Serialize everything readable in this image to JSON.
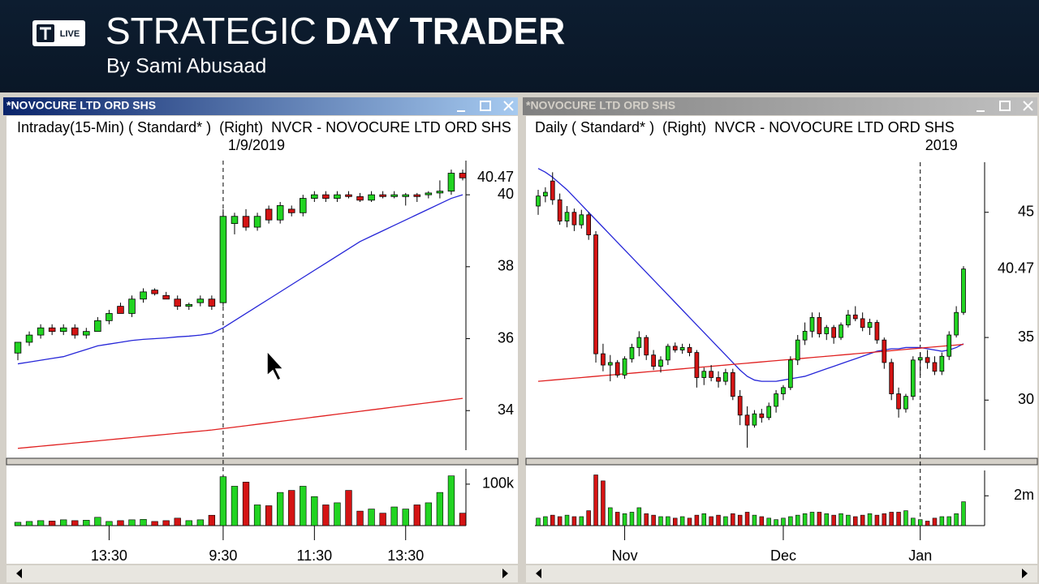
{
  "header": {
    "logo": "LIVE",
    "title_light": "STRATEGIC",
    "title_bold": "DAY TRADER",
    "byline": "By Sami Abusaad"
  },
  "windows": [
    {
      "title": "*NOVOCURE LTD ORD SHS",
      "info": "Intraday(15-Min) ( Standard* )  (Right)  NVCR - NOVOCURE LTD ORD SHS"
    },
    {
      "title": "*NOVOCURE LTD ORD SHS",
      "info": "Daily ( Standard* )  (Right)  NVCR - NOVOCURE LTD ORD SHS"
    }
  ],
  "chart_data": [
    {
      "type": "candlestick",
      "date_label": "1/9/2019",
      "date_marker_index": 18,
      "ylim": [
        32.9,
        40.95
      ],
      "yticks": [
        34,
        36,
        38,
        40
      ],
      "last_price": 40.47,
      "up_color": "#22d422",
      "down_color": "#d41414",
      "candles": [
        [
          35.6,
          35.9,
          35.4,
          35.9
        ],
        [
          35.9,
          36.2,
          35.8,
          36.1
        ],
        [
          36.1,
          36.4,
          36.0,
          36.3
        ],
        [
          36.3,
          36.4,
          36.1,
          36.2
        ],
        [
          36.2,
          36.4,
          36.1,
          36.3
        ],
        [
          36.3,
          36.4,
          36.0,
          36.1
        ],
        [
          36.1,
          36.3,
          36.0,
          36.2
        ],
        [
          36.2,
          36.6,
          36.2,
          36.5
        ],
        [
          36.5,
          36.8,
          36.4,
          36.7
        ],
        [
          36.9,
          37.0,
          36.7,
          36.7
        ],
        [
          36.7,
          37.2,
          36.6,
          37.1
        ],
        [
          37.1,
          37.4,
          37.0,
          37.3
        ],
        [
          37.35,
          37.4,
          37.2,
          37.25
        ],
        [
          37.2,
          37.3,
          37.1,
          37.1
        ],
        [
          37.1,
          37.2,
          36.8,
          36.9
        ],
        [
          36.9,
          37.0,
          36.8,
          36.95
        ],
        [
          37.0,
          37.2,
          36.9,
          37.1
        ],
        [
          37.1,
          37.2,
          36.8,
          36.9
        ],
        [
          37.0,
          39.6,
          36.9,
          39.4
        ],
        [
          39.2,
          39.5,
          38.9,
          39.4
        ],
        [
          39.4,
          39.6,
          39.0,
          39.1
        ],
        [
          39.1,
          39.5,
          39.0,
          39.4
        ],
        [
          39.6,
          39.7,
          39.2,
          39.3
        ],
        [
          39.3,
          39.8,
          39.2,
          39.7
        ],
        [
          39.6,
          39.7,
          39.4,
          39.5
        ],
        [
          39.5,
          40.0,
          39.4,
          39.9
        ],
        [
          39.9,
          40.1,
          39.8,
          40.0
        ],
        [
          40.0,
          40.1,
          39.8,
          39.9
        ],
        [
          39.9,
          40.1,
          39.8,
          40.0
        ],
        [
          40.0,
          40.1,
          39.9,
          39.95
        ],
        [
          39.95,
          40.05,
          39.8,
          39.85
        ],
        [
          39.85,
          40.1,
          39.8,
          40.0
        ],
        [
          40.0,
          40.1,
          39.9,
          39.95
        ],
        [
          39.95,
          40.1,
          39.9,
          40.0
        ],
        [
          39.95,
          40.05,
          39.7,
          40.0
        ],
        [
          40.0,
          40.05,
          39.8,
          39.95
        ],
        [
          40.0,
          40.1,
          39.9,
          40.05
        ],
        [
          40.05,
          40.4,
          39.9,
          40.1
        ],
        [
          40.1,
          40.7,
          40.0,
          40.6
        ],
        [
          40.6,
          40.7,
          40.4,
          40.47
        ]
      ],
      "series": [
        {
          "color": "#2626d8",
          "values": [
            35.3,
            35.35,
            35.4,
            35.45,
            35.5,
            35.6,
            35.7,
            35.8,
            35.85,
            35.9,
            35.95,
            35.98,
            36.0,
            36.02,
            36.05,
            36.07,
            36.1,
            36.15,
            36.3,
            36.5,
            36.7,
            36.9,
            37.1,
            37.3,
            37.5,
            37.7,
            37.9,
            38.1,
            38.3,
            38.5,
            38.7,
            38.85,
            39.0,
            39.15,
            39.3,
            39.45,
            39.6,
            39.75,
            39.9,
            40.0
          ]
        },
        {
          "color": "#e02020",
          "values": [
            32.95,
            32.98,
            33.01,
            33.04,
            33.07,
            33.1,
            33.13,
            33.16,
            33.19,
            33.22,
            33.25,
            33.28,
            33.31,
            33.34,
            33.37,
            33.4,
            33.43,
            33.46,
            33.5,
            33.54,
            33.58,
            33.62,
            33.66,
            33.7,
            33.74,
            33.78,
            33.82,
            33.86,
            33.9,
            33.94,
            33.98,
            34.02,
            34.06,
            34.1,
            34.14,
            34.18,
            34.22,
            34.26,
            34.3,
            34.34
          ]
        }
      ],
      "volume": {
        "ylim": [
          0,
          137000
        ],
        "yticks": [
          {
            "value": 100000,
            "label": "100k"
          }
        ],
        "values": [
          8000,
          10000,
          12000,
          11000,
          14000,
          12000,
          13000,
          20000,
          10000,
          12000,
          14000,
          15000,
          10000,
          12000,
          18000,
          12000,
          14000,
          25000,
          118000,
          95000,
          105000,
          50000,
          48000,
          80000,
          85000,
          95000,
          70000,
          50000,
          55000,
          85000,
          35000,
          40000,
          30000,
          45000,
          40000,
          50000,
          55000,
          80000,
          120000,
          30000
        ]
      },
      "x_labels": [
        {
          "index": 8,
          "label": "13:30"
        },
        {
          "index": 18,
          "label": "9:30"
        },
        {
          "index": 26,
          "label": "11:30"
        },
        {
          "index": 34,
          "label": "13:30"
        }
      ]
    },
    {
      "type": "candlestick",
      "date_label": "2019",
      "date_marker_index": 53,
      "ylim": [
        26,
        49
      ],
      "yticks": [
        30,
        35,
        45
      ],
      "last_price": 40.47,
      "up_color": "#22d422",
      "down_color": "#d41414",
      "candles": [
        [
          45.5,
          46.8,
          44.8,
          46.3
        ],
        [
          46.3,
          47.0,
          45.8,
          46.6
        ],
        [
          47.5,
          48.2,
          45.6,
          46.0
        ],
        [
          46.0,
          46.5,
          44.0,
          44.3
        ],
        [
          44.3,
          45.5,
          43.8,
          45.0
        ],
        [
          45.0,
          45.3,
          43.5,
          44.0
        ],
        [
          44.0,
          45.2,
          43.7,
          44.8
        ],
        [
          44.8,
          45.0,
          42.8,
          43.2
        ],
        [
          43.2,
          43.5,
          33.0,
          33.7
        ],
        [
          33.7,
          34.5,
          32.3,
          32.8
        ],
        [
          32.8,
          33.6,
          31.5,
          33.0
        ],
        [
          33.0,
          33.2,
          31.8,
          32.0
        ],
        [
          32.0,
          33.5,
          31.7,
          33.3
        ],
        [
          33.3,
          34.5,
          33.0,
          34.2
        ],
        [
          34.2,
          35.5,
          33.5,
          35.0
        ],
        [
          35.0,
          35.2,
          33.2,
          33.6
        ],
        [
          33.6,
          34.0,
          32.4,
          32.7
        ],
        [
          32.7,
          33.5,
          32.2,
          33.2
        ],
        [
          33.2,
          34.5,
          32.8,
          34.3
        ],
        [
          34.3,
          34.6,
          33.8,
          34.0
        ],
        [
          34.0,
          34.5,
          33.7,
          34.2
        ],
        [
          34.2,
          34.5,
          33.5,
          33.8
        ],
        [
          33.8,
          34.0,
          31.0,
          31.8
        ],
        [
          31.8,
          32.6,
          31.2,
          32.3
        ],
        [
          32.3,
          32.8,
          31.5,
          31.8
        ],
        [
          31.8,
          32.3,
          31.0,
          31.5
        ],
        [
          31.5,
          32.5,
          31.2,
          32.2
        ],
        [
          32.2,
          32.5,
          30.0,
          30.3
        ],
        [
          30.3,
          30.8,
          28.0,
          28.8
        ],
        [
          28.8,
          29.5,
          26.2,
          28.0
        ],
        [
          28.0,
          29.2,
          27.8,
          28.9
        ],
        [
          28.9,
          29.3,
          28.2,
          28.6
        ],
        [
          28.6,
          29.8,
          28.4,
          29.5
        ],
        [
          29.5,
          30.8,
          29.0,
          30.5
        ],
        [
          30.5,
          31.2,
          30.0,
          31.0
        ],
        [
          31.0,
          33.5,
          30.8,
          33.2
        ],
        [
          33.2,
          35.2,
          32.8,
          34.8
        ],
        [
          34.8,
          36.2,
          34.4,
          35.5
        ],
        [
          35.5,
          37.0,
          35.0,
          36.6
        ],
        [
          36.6,
          37.0,
          35.0,
          35.3
        ],
        [
          35.3,
          36.0,
          34.8,
          35.8
        ],
        [
          35.8,
          36.0,
          34.5,
          35.0
        ],
        [
          35.0,
          36.2,
          34.8,
          36.0
        ],
        [
          36.0,
          37.2,
          35.8,
          36.8
        ],
        [
          36.8,
          37.5,
          36.3,
          36.5
        ],
        [
          36.5,
          37.0,
          35.5,
          35.8
        ],
        [
          35.8,
          36.5,
          35.2,
          36.2
        ],
        [
          36.2,
          36.4,
          34.5,
          34.8
        ],
        [
          34.8,
          35.0,
          32.5,
          33.0
        ],
        [
          33.0,
          33.3,
          30.0,
          30.5
        ],
        [
          30.5,
          31.0,
          28.6,
          29.3
        ],
        [
          29.3,
          30.5,
          29.0,
          30.3
        ],
        [
          30.3,
          33.5,
          30.0,
          33.2
        ],
        [
          33.2,
          33.8,
          32.0,
          33.4
        ],
        [
          33.4,
          34.0,
          32.5,
          33.0
        ],
        [
          33.0,
          33.5,
          32.0,
          32.3
        ],
        [
          32.3,
          33.8,
          32.0,
          33.5
        ],
        [
          33.5,
          35.5,
          33.2,
          35.2
        ],
        [
          35.2,
          37.5,
          35.0,
          37.0
        ],
        [
          37.0,
          40.7,
          36.8,
          40.47
        ]
      ],
      "series": [
        {
          "color": "#2626d8",
          "values": [
            48.5,
            48.2,
            47.8,
            47.3,
            46.8,
            46.2,
            45.6,
            45.0,
            44.4,
            43.8,
            43.2,
            42.6,
            42.0,
            41.4,
            40.8,
            40.2,
            39.6,
            39.0,
            38.4,
            37.8,
            37.2,
            36.6,
            36.0,
            35.4,
            34.8,
            34.2,
            33.6,
            33.0,
            32.4,
            31.9,
            31.6,
            31.5,
            31.5,
            31.5,
            31.6,
            31.7,
            31.8,
            31.9,
            32.1,
            32.3,
            32.5,
            32.7,
            32.9,
            33.1,
            33.3,
            33.5,
            33.7,
            33.9,
            34.0,
            34.1,
            34.1,
            34.2,
            34.2,
            34.2,
            34.1,
            34.0,
            33.9,
            34.0,
            34.2,
            34.5
          ]
        },
        {
          "color": "#e02020",
          "values": [
            31.5,
            31.55,
            31.6,
            31.65,
            31.7,
            31.75,
            31.8,
            31.85,
            31.9,
            31.95,
            32.0,
            32.05,
            32.1,
            32.15,
            32.2,
            32.25,
            32.3,
            32.35,
            32.4,
            32.45,
            32.5,
            32.55,
            32.6,
            32.65,
            32.7,
            32.75,
            32.8,
            32.85,
            32.9,
            32.95,
            33.0,
            33.05,
            33.1,
            33.15,
            33.2,
            33.25,
            33.3,
            33.35,
            33.4,
            33.45,
            33.5,
            33.55,
            33.6,
            33.65,
            33.7,
            33.75,
            33.8,
            33.85,
            33.9,
            33.95,
            34.0,
            34.05,
            34.1,
            34.15,
            34.2,
            34.25,
            34.3,
            34.35,
            34.4,
            34.45
          ]
        }
      ],
      "volume": {
        "ylim": [
          0,
          3700000
        ],
        "yticks": [
          {
            "value": 2000000,
            "label": "2m"
          }
        ],
        "values": [
          500000,
          600000,
          700000,
          600000,
          700000,
          600000,
          600000,
          1000000,
          3400000,
          3000000,
          1200000,
          900000,
          800000,
          900000,
          1200000,
          800000,
          700000,
          600000,
          600000,
          500000,
          600000,
          500000,
          700000,
          800000,
          600000,
          700000,
          600000,
          800000,
          700000,
          900000,
          700000,
          600000,
          500000,
          400000,
          500000,
          600000,
          700000,
          800000,
          900000,
          900000,
          800000,
          700000,
          800000,
          700000,
          600000,
          700000,
          800000,
          700000,
          800000,
          900000,
          900000,
          1000000,
          500000,
          400000,
          300000,
          500000,
          600000,
          600000,
          800000,
          1600000
        ]
      },
      "x_labels": [
        {
          "index": 12,
          "label": "Nov"
        },
        {
          "index": 34,
          "label": "Dec"
        },
        {
          "index": 53,
          "label": "Jan"
        }
      ]
    }
  ]
}
